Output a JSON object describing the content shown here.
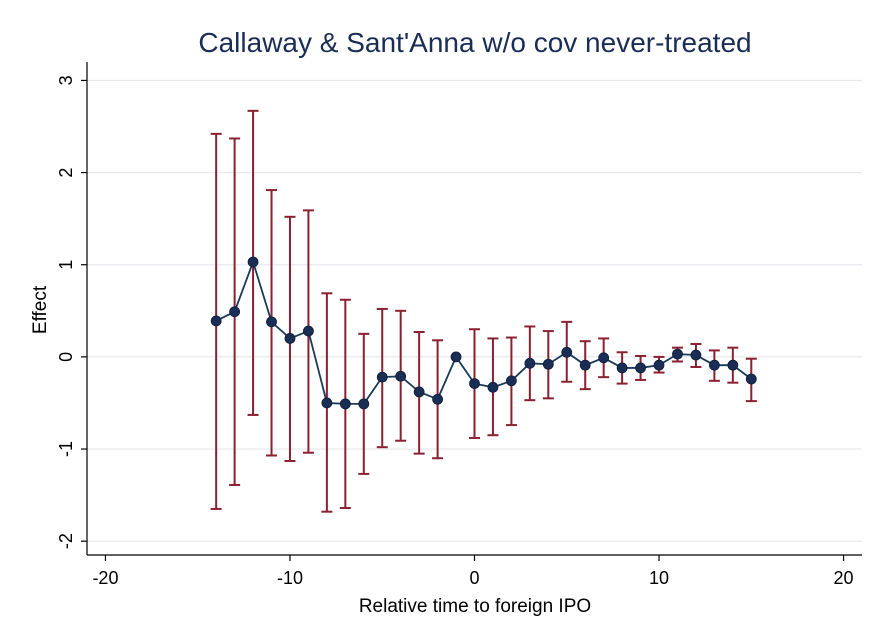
{
  "chart_data": {
    "type": "scatter",
    "title": "Callaway & Sant'Anna w/o cov never-treated",
    "xlabel": "Relative time to foreign IPO",
    "ylabel": "Effect",
    "xlim": [
      -21,
      21
    ],
    "ylim": [
      -2.15,
      3.2
    ],
    "xticks": [
      -20,
      -10,
      0,
      10,
      20
    ],
    "xtick_labels": [
      "-20",
      "-10",
      "0",
      "10",
      "20"
    ],
    "yticks": [
      -2,
      -1,
      0,
      1,
      2,
      3
    ],
    "ytick_labels": [
      "-2",
      "-1",
      "0",
      "1",
      "2",
      "3"
    ],
    "grid": true,
    "legend": "none",
    "colors": {
      "point": "#1a2e55",
      "line": "#1a3a5c",
      "ci": "#8b2030",
      "grid": "#e6eaee",
      "title": "#1a2e55"
    },
    "series": [
      {
        "x": [
          -14,
          -13,
          -12,
          -11,
          -10,
          -9,
          -8,
          -7,
          -6,
          -5,
          -4,
          -3,
          -2,
          -1,
          0,
          1,
          2,
          3,
          4,
          5,
          6,
          7,
          8,
          9,
          10,
          11,
          12,
          13,
          14,
          15
        ],
        "y": [
          0.39,
          0.49,
          1.03,
          0.38,
          0.2,
          0.28,
          -0.5,
          -0.51,
          -0.51,
          -0.22,
          -0.21,
          -0.38,
          -0.46,
          0.0,
          -0.29,
          -0.33,
          -0.26,
          -0.07,
          -0.08,
          0.05,
          -0.09,
          -0.01,
          -0.12,
          -0.12,
          -0.09,
          0.03,
          0.02,
          -0.09,
          -0.09,
          -0.24
        ],
        "lower": [
          -1.65,
          -1.39,
          -0.63,
          -1.07,
          -1.13,
          -1.04,
          -1.68,
          -1.64,
          -1.27,
          -0.98,
          -0.91,
          -1.05,
          -1.1,
          0.0,
          -0.88,
          -0.85,
          -0.74,
          -0.47,
          -0.45,
          -0.27,
          -0.35,
          -0.22,
          -0.29,
          -0.25,
          -0.17,
          -0.05,
          -0.11,
          -0.26,
          -0.28,
          -0.48
        ],
        "upper": [
          2.42,
          2.37,
          2.67,
          1.81,
          1.52,
          1.59,
          0.69,
          0.62,
          0.25,
          0.52,
          0.5,
          0.27,
          0.18,
          0.0,
          0.3,
          0.2,
          0.21,
          0.33,
          0.28,
          0.38,
          0.17,
          0.2,
          0.05,
          0.01,
          0.0,
          0.1,
          0.14,
          0.07,
          0.1,
          -0.02
        ]
      }
    ]
  }
}
